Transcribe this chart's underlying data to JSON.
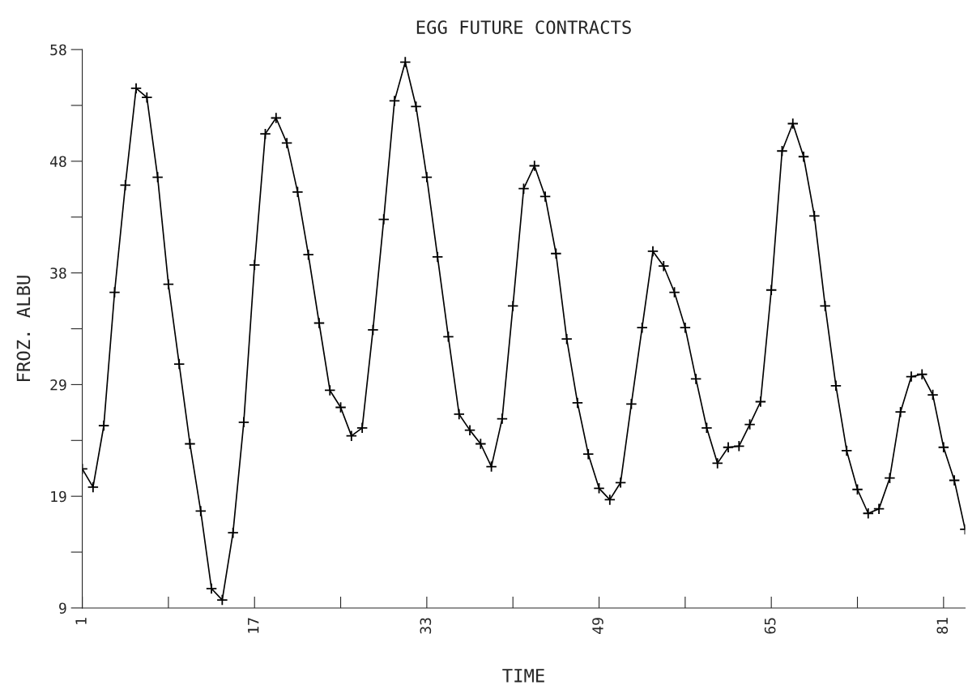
{
  "chart_data": {
    "type": "line",
    "title": "EGG FUTURE CONTRACTS",
    "xlabel": "TIME",
    "ylabel": "FROZ. ALBU",
    "x": [
      1,
      2,
      3,
      4,
      5,
      6,
      7,
      8,
      9,
      10,
      11,
      12,
      13,
      14,
      15,
      16,
      17,
      18,
      19,
      20,
      21,
      22,
      23,
      24,
      25,
      26,
      27,
      28,
      29,
      30,
      31,
      32,
      33,
      34,
      35,
      36,
      37,
      38,
      39,
      40,
      41,
      42,
      43,
      44,
      45,
      46,
      47,
      48,
      49,
      50,
      51,
      52,
      53,
      54,
      55,
      56,
      57,
      58,
      59,
      60,
      61,
      62,
      63,
      64,
      65,
      66,
      67,
      68,
      69,
      70,
      71,
      72,
      73,
      74,
      75,
      76,
      77,
      78,
      79,
      80,
      81,
      82,
      83
    ],
    "series": [
      {
        "color": "#000000",
        "values": [
          21.2,
          19.6,
          25.0,
          36.7,
          46.1,
          54.6,
          53.8,
          46.8,
          37.4,
          30.4,
          23.4,
          17.5,
          10.7,
          9.7,
          15.6,
          25.3,
          39.1,
          50.6,
          52.0,
          49.8,
          45.5,
          40.0,
          34.0,
          28.1,
          26.6,
          24.1,
          24.8,
          33.4,
          43.1,
          53.5,
          56.9,
          53.0,
          46.8,
          39.8,
          32.8,
          26.0,
          24.6,
          23.4,
          21.4,
          25.6,
          35.5,
          45.8,
          47.8,
          45.1,
          40.1,
          32.6,
          27.0,
          22.5,
          19.5,
          18.5,
          20.0,
          26.9,
          33.6,
          40.3,
          39.0,
          36.7,
          33.6,
          29.1,
          24.8,
          21.7,
          23.1,
          23.2,
          25.1,
          27.1,
          36.9,
          49.1,
          51.5,
          48.6,
          43.4,
          35.5,
          28.5,
          22.8,
          19.4,
          17.3,
          17.7,
          20.4,
          26.2,
          29.3,
          29.5,
          27.7,
          23.1,
          20.2,
          15.9
        ]
      }
    ],
    "xlim": [
      1,
      83
    ],
    "xticks": [
      1,
      {
        "value": 9,
        "label": null
      },
      17,
      {
        "value": 25,
        "label": null
      },
      33,
      {
        "value": 41,
        "label": null
      },
      49,
      {
        "value": 57,
        "label": null
      },
      65,
      {
        "value": 73,
        "label": null
      },
      81
    ],
    "ylim": [
      9,
      58
    ],
    "yticks": [
      9,
      {
        "value": 13.9,
        "label": null
      },
      {
        "value": 18.8,
        "label": "19"
      },
      {
        "value": 23.7,
        "label": null
      },
      {
        "value": 28.6,
        "label": "29"
      },
      {
        "value": 33.5,
        "label": null
      },
      {
        "value": 38.4,
        "label": "38"
      },
      {
        "value": 43.3,
        "label": null
      },
      {
        "value": 48.2,
        "label": "48"
      },
      {
        "value": 53.1,
        "label": null
      },
      58
    ],
    "marker": "cross",
    "line_style": "solid",
    "grid": false,
    "legend": false
  }
}
